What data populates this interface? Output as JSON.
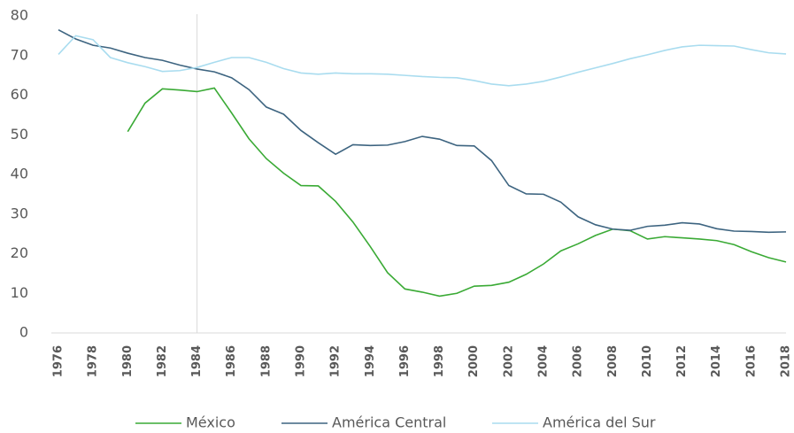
{
  "chart_data": {
    "type": "line",
    "x": [
      1976,
      1977,
      1978,
      1979,
      1980,
      1981,
      1982,
      1983,
      1984,
      1985,
      1986,
      1987,
      1988,
      1989,
      1990,
      1991,
      1992,
      1993,
      1994,
      1995,
      1996,
      1997,
      1998,
      1999,
      2000,
      2001,
      2002,
      2003,
      2004,
      2005,
      2006,
      2007,
      2008,
      2009,
      2010,
      2011,
      2012,
      2013,
      2014,
      2015,
      2016,
      2017,
      2018
    ],
    "series": [
      {
        "name": "México",
        "color": "#3aaa35",
        "values": [
          null,
          null,
          null,
          null,
          50.8,
          58,
          61.6,
          61.3,
          60.9,
          61.8,
          55.5,
          49,
          44,
          40.3,
          37.2,
          37.1,
          33.2,
          28,
          21.8,
          15.2,
          11.1,
          10.3,
          9.3,
          10,
          11.8,
          12,
          12.8,
          14.8,
          17.4,
          20.7,
          22.5,
          24.6,
          26.2,
          25.8,
          23.7,
          24.3,
          24,
          23.7,
          23.3,
          22.3,
          20.5,
          19,
          17.9
        ]
      },
      {
        "name": "América Central",
        "color": "#3d6480",
        "values": [
          76.5,
          74.2,
          72.6,
          71.9,
          70.6,
          69.5,
          68.8,
          67.6,
          66.6,
          65.9,
          64.4,
          61.4,
          57,
          55.2,
          51.1,
          48,
          45.1,
          47.5,
          47.3,
          47.4,
          48.3,
          49.6,
          48.9,
          47.3,
          47.2,
          43.5,
          37.2,
          35.1,
          35,
          33,
          29.3,
          27.3,
          26.2,
          25.9,
          26.9,
          27.2,
          27.8,
          27.5,
          26.3,
          25.7,
          25.6,
          25.4,
          25.5
        ]
      },
      {
        "name": "América del Sur",
        "color": "#a9dcef",
        "values": [
          70.3,
          75,
          74,
          69.5,
          68.2,
          67.2,
          66,
          66.2,
          67,
          68.3,
          69.5,
          69.5,
          68.3,
          66.7,
          65.6,
          65.3,
          65.6,
          65.4,
          65.4,
          65.3,
          65,
          64.7,
          64.5,
          64.4,
          63.7,
          62.8,
          62.4,
          62.8,
          63.5,
          64.6,
          65.8,
          66.9,
          68,
          69.2,
          70.2,
          71.3,
          72.2,
          72.6,
          72.5,
          72.4,
          71.5,
          70.7,
          70.4
        ]
      }
    ],
    "xlim": [
      1976,
      2018
    ],
    "xticks": [
      1976,
      1978,
      1980,
      1982,
      1984,
      1986,
      1988,
      1990,
      1992,
      1994,
      1996,
      1998,
      2000,
      2002,
      2004,
      2006,
      2008,
      2010,
      2012,
      2014,
      2016,
      2018
    ],
    "ylim": [
      0,
      80
    ],
    "yticks": [
      0,
      10,
      20,
      30,
      40,
      50,
      60,
      70,
      80
    ],
    "reference_x": 1984
  }
}
